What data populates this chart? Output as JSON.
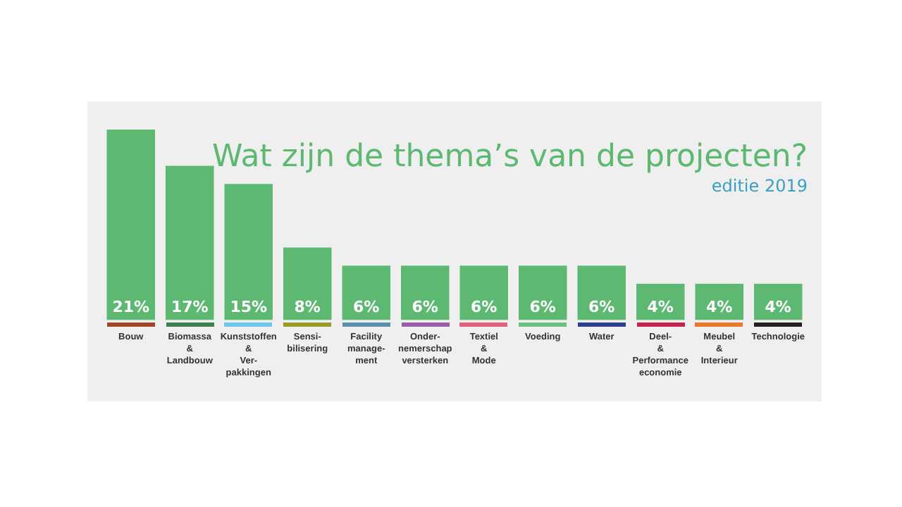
{
  "chart_data": {
    "type": "bar",
    "title": "Wat zijn de thema’s van de projecten?",
    "subtitle": "editie 2019",
    "categories": [
      "Bouw",
      "Biomassa & Landbouw",
      "Kunststoffen & Ver-pakkingen",
      "Sensi-bilisering",
      "Facility manage-ment",
      "Onder-nemerschap versterken",
      "Textiel & Mode",
      "Voeding",
      "Water",
      "Deel- & Performance economie",
      "Meubel & Interieur",
      "Technologie"
    ],
    "values": [
      21,
      17,
      15,
      8,
      6,
      6,
      6,
      6,
      6,
      4,
      4,
      4
    ],
    "value_labels": [
      "21%",
      "17%",
      "15%",
      "8%",
      "6%",
      "6%",
      "6%",
      "6%",
      "6%",
      "4%",
      "4%",
      "4%"
    ],
    "color": "#5db872",
    "tick_labels": "x",
    "grid": false,
    "legend": false
  }
}
